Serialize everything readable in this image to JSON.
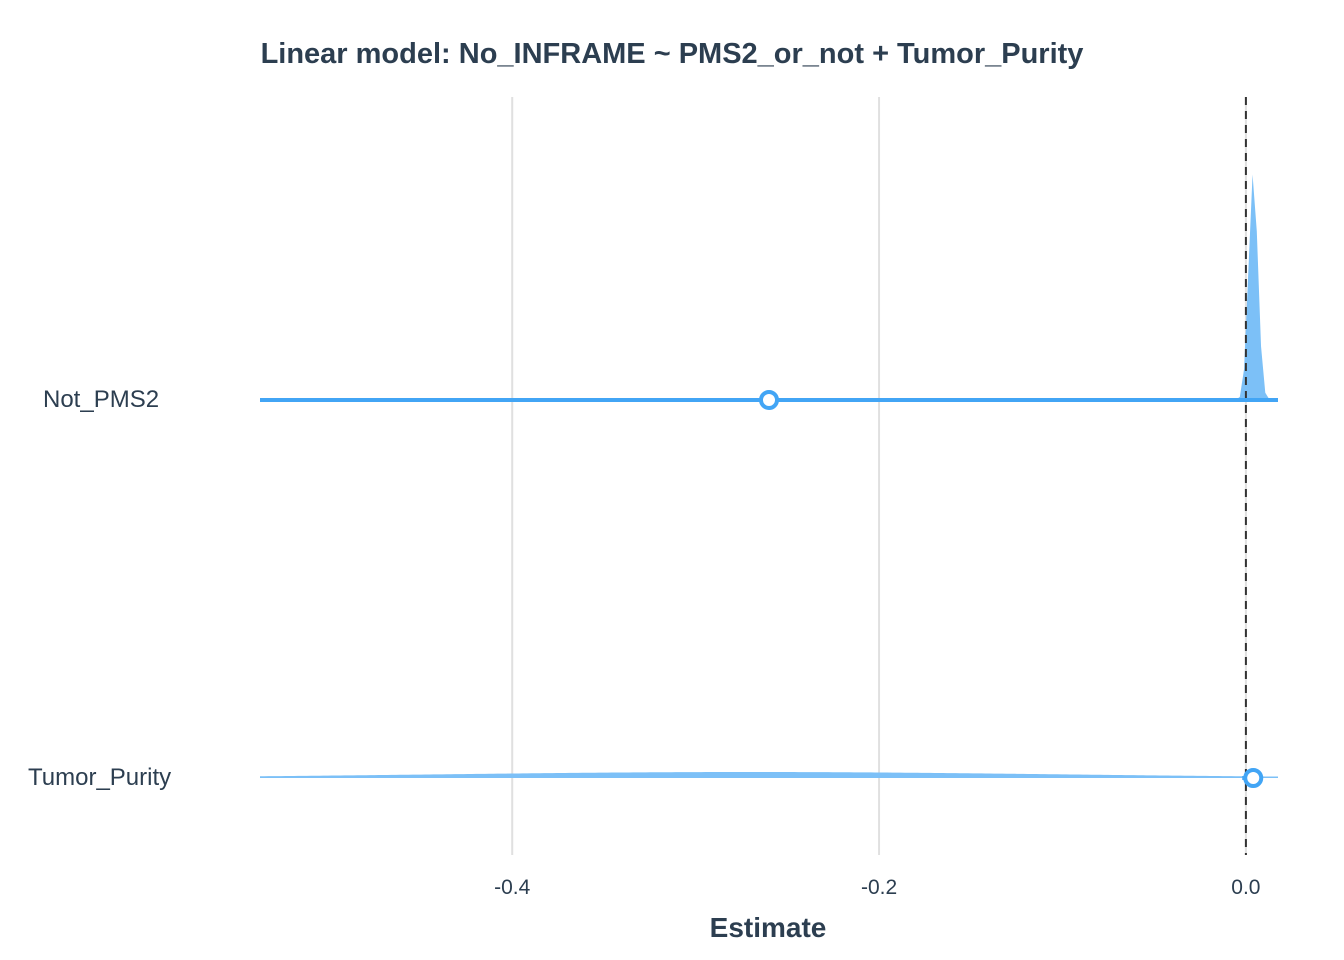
{
  "chart_data": {
    "type": "forest",
    "title": "Linear model: No_INFRAME ~ PMS2_or_not + Tumor_Purity",
    "xlabel": "Estimate",
    "ylabel": "",
    "xlim": [
      -0.5375,
      0.0175
    ],
    "xticks": [
      -0.4,
      -0.2,
      0.0
    ],
    "xtick_labels": [
      "-0.4",
      "-0.2",
      "0.0"
    ],
    "reference_line": 0.0,
    "grid": true,
    "terms": [
      {
        "label": "Not_PMS2",
        "estimate": -0.26,
        "ci_low": -0.5375,
        "ci_high": 0.0175,
        "density_mean": 0.004,
        "density_sd": 0.0025
      },
      {
        "label": "Tumor_Purity",
        "estimate": 0.004,
        "ci_low": -0.002,
        "ci_high": 0.009,
        "density_mean": -0.27,
        "density_sd": 0.17
      }
    ],
    "colors": {
      "line": "#42a5f5",
      "density": "#7cc0f7",
      "point_fill": "#ffffff",
      "grid": "#e0e0e0",
      "reference": "#333333"
    }
  }
}
